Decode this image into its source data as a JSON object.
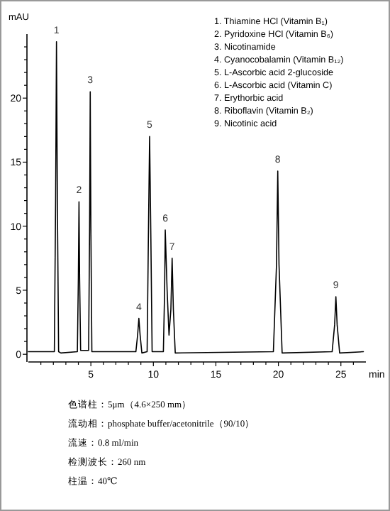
{
  "chart_data": {
    "type": "line",
    "ylabel": "mAU",
    "xlabel": "min",
    "xlim": [
      0,
      27
    ],
    "ylim": [
      -0.6,
      25
    ],
    "xticks": [
      {
        "value": 1,
        "label": null
      },
      {
        "value": 2,
        "label": null
      },
      {
        "value": 3,
        "label": null
      },
      {
        "value": 4,
        "label": null
      },
      5,
      {
        "value": 6,
        "label": null
      },
      {
        "value": 7,
        "label": null
      },
      {
        "value": 8,
        "label": null
      },
      {
        "value": 9,
        "label": null
      },
      10,
      {
        "value": 11,
        "label": null
      },
      {
        "value": 12,
        "label": null
      },
      {
        "value": 13,
        "label": null
      },
      {
        "value": 14,
        "label": null
      },
      15,
      {
        "value": 16,
        "label": null
      },
      {
        "value": 17,
        "label": null
      },
      {
        "value": 18,
        "label": null
      },
      {
        "value": 19,
        "label": null
      },
      20,
      {
        "value": 21,
        "label": null
      },
      {
        "value": 22,
        "label": null
      },
      {
        "value": 23,
        "label": null
      },
      {
        "value": 24,
        "label": null
      },
      25,
      {
        "value": 26,
        "label": null
      }
    ],
    "yticks": [
      0,
      {
        "value": 1,
        "label": null
      },
      {
        "value": 2,
        "label": null
      },
      {
        "value": 3,
        "label": null
      },
      {
        "value": 4,
        "label": null
      },
      5,
      {
        "value": 6,
        "label": null
      },
      {
        "value": 7,
        "label": null
      },
      {
        "value": 8,
        "label": null
      },
      {
        "value": 9,
        "label": null
      },
      10,
      {
        "value": 11,
        "label": null
      },
      {
        "value": 12,
        "label": null
      },
      {
        "value": 13,
        "label": null
      },
      {
        "value": 14,
        "label": null
      },
      15,
      {
        "value": 16,
        "label": null
      },
      {
        "value": 17,
        "label": null
      },
      {
        "value": 18,
        "label": null
      },
      {
        "value": 19,
        "label": null
      },
      20,
      {
        "value": 21,
        "label": null
      },
      {
        "value": 22,
        "label": null
      },
      {
        "value": 23,
        "label": null
      },
      {
        "value": 24,
        "label": null
      }
    ],
    "grid": false,
    "marker": "none",
    "line_style": "solid",
    "series": [
      {
        "color": "#000000",
        "x": [
          0,
          2.08,
          2.18,
          2.25,
          2.32,
          2.42,
          2.6,
          3.92,
          4.0,
          4.05,
          4.1,
          4.18,
          4.82,
          4.9,
          4.95,
          5.0,
          5.08,
          5.3,
          8.6,
          8.74,
          8.84,
          8.94,
          9.08,
          9.5,
          9.6,
          9.7,
          9.8,
          9.9,
          10.8,
          10.9,
          10.95,
          11.1,
          11.25,
          11.4,
          11.5,
          11.6,
          11.75,
          19.6,
          19.85,
          19.95,
          20.05,
          20.3,
          24.3,
          24.5,
          24.6,
          24.7,
          24.9,
          26.8
        ],
        "values": [
          0.2,
          0.2,
          12,
          24.4,
          12,
          0.2,
          0.1,
          0.2,
          6,
          11.9,
          6,
          0.3,
          0.3,
          10,
          20.5,
          10,
          0.2,
          0.2,
          0.2,
          1.5,
          2.8,
          1.5,
          0.1,
          0.2,
          9,
          17,
          9,
          0.2,
          0.2,
          5,
          9.7,
          5,
          1.5,
          3.5,
          7.5,
          3.5,
          0.1,
          0.2,
          7,
          14.3,
          7,
          0.1,
          0.2,
          2.3,
          4.5,
          2.3,
          0.1,
          0.2
        ]
      }
    ],
    "annotations": [
      {
        "text": "1",
        "x": 2.25,
        "y": 24.4
      },
      {
        "text": "2",
        "x": 4.05,
        "y": 11.9
      },
      {
        "text": "3",
        "x": 4.95,
        "y": 20.5
      },
      {
        "text": "4",
        "x": 8.84,
        "y": 2.8
      },
      {
        "text": "5",
        "x": 9.7,
        "y": 17
      },
      {
        "text": "6",
        "x": 10.95,
        "y": 9.7
      },
      {
        "text": "7",
        "x": 11.5,
        "y": 7.5
      },
      {
        "text": "8",
        "x": 19.95,
        "y": 14.3
      },
      {
        "text": "9",
        "x": 24.6,
        "y": 4.5
      },
      "1. Thiamine HCl (Vitamin B₁)",
      "2. Pyridoxine HCl (Vitamin B₆)",
      "3. Nicotinamide",
      "4. Cyanocobalamin (Vitamin B₁₂)",
      "5. L-Ascorbic acid 2-glucoside",
      "6. L-Ascorbic acid (Vitamin C)",
      "7. Erythorbic acid",
      "8. Riboflavin (Vitamin B₂)",
      "9. Nicotinic acid",
      "色谱柱：5μm（4.6×250 mm）",
      "流动相：phosphate buffer/acetonitrile（90/10）",
      "流速：0.8 ml/min",
      "检测波长：260 nm",
      "柱温：40℃"
    ]
  }
}
